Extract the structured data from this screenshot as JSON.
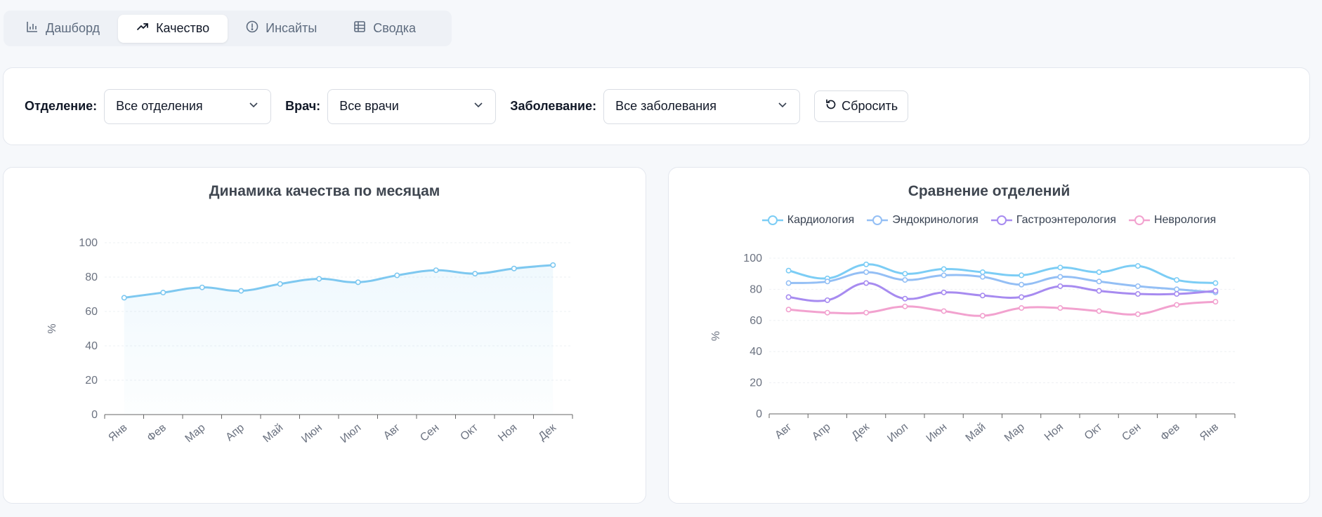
{
  "tabs": [
    {
      "label": "Дашборд",
      "icon": "bar-chart-icon",
      "active": false
    },
    {
      "label": "Качество",
      "icon": "trending-up-icon",
      "active": true
    },
    {
      "label": "Инсайты",
      "icon": "alert-circle-icon",
      "active": false
    },
    {
      "label": "Сводка",
      "icon": "table-icon",
      "active": false
    }
  ],
  "filters": {
    "department_label": "Отделение:",
    "department_value": "Все отделения",
    "doctor_label": "Врач:",
    "doctor_value": "Все врачи",
    "disease_label": "Заболевание:",
    "disease_value": "Все заболевания",
    "reset_label": "Сбросить"
  },
  "colors": {
    "accent": "#7ec8f0",
    "kardio": "#7ccdf5",
    "endo": "#94bff5",
    "gastro": "#a78bf0",
    "nevro": "#f2a2cf"
  },
  "chart_data": [
    {
      "type": "area",
      "title": "Динамика качества по месяцам",
      "ylabel": "%",
      "xlabel": "",
      "ylim": [
        0,
        100
      ],
      "yticks": [
        0,
        20,
        40,
        60,
        80,
        100
      ],
      "categories": [
        "Янв",
        "Фев",
        "Мар",
        "Апр",
        "Май",
        "Июн",
        "Июл",
        "Авг",
        "Сен",
        "Окт",
        "Ноя",
        "Дек"
      ],
      "series": [
        {
          "values": [
            68,
            71,
            74,
            72,
            76,
            79,
            77,
            81,
            84,
            82,
            85,
            87
          ]
        }
      ]
    },
    {
      "type": "line",
      "title": "Сравнение отделений",
      "ylabel": "%",
      "xlabel": "",
      "ylim": [
        0,
        100
      ],
      "yticks": [
        0,
        20,
        40,
        60,
        80,
        100
      ],
      "legend": "top",
      "categories": [
        "Авг",
        "Апр",
        "Дек",
        "Июл",
        "Июн",
        "Май",
        "Мар",
        "Ноя",
        "Окт",
        "Сен",
        "Фев",
        "Янв"
      ],
      "series": [
        {
          "name": "Кардиология",
          "values": [
            92,
            87,
            96,
            90,
            93,
            91,
            89,
            94,
            91,
            95,
            86,
            84
          ]
        },
        {
          "name": "Эндокринология",
          "values": [
            84,
            85,
            91,
            86,
            89,
            88,
            83,
            88,
            85,
            82,
            80,
            78
          ]
        },
        {
          "name": "Гастроэнтерология",
          "values": [
            75,
            73,
            84,
            74,
            78,
            76,
            75,
            82,
            79,
            77,
            77,
            79
          ]
        },
        {
          "name": "Неврология",
          "values": [
            67,
            65,
            65,
            69,
            66,
            63,
            68,
            68,
            66,
            64,
            70,
            72
          ]
        }
      ]
    }
  ]
}
